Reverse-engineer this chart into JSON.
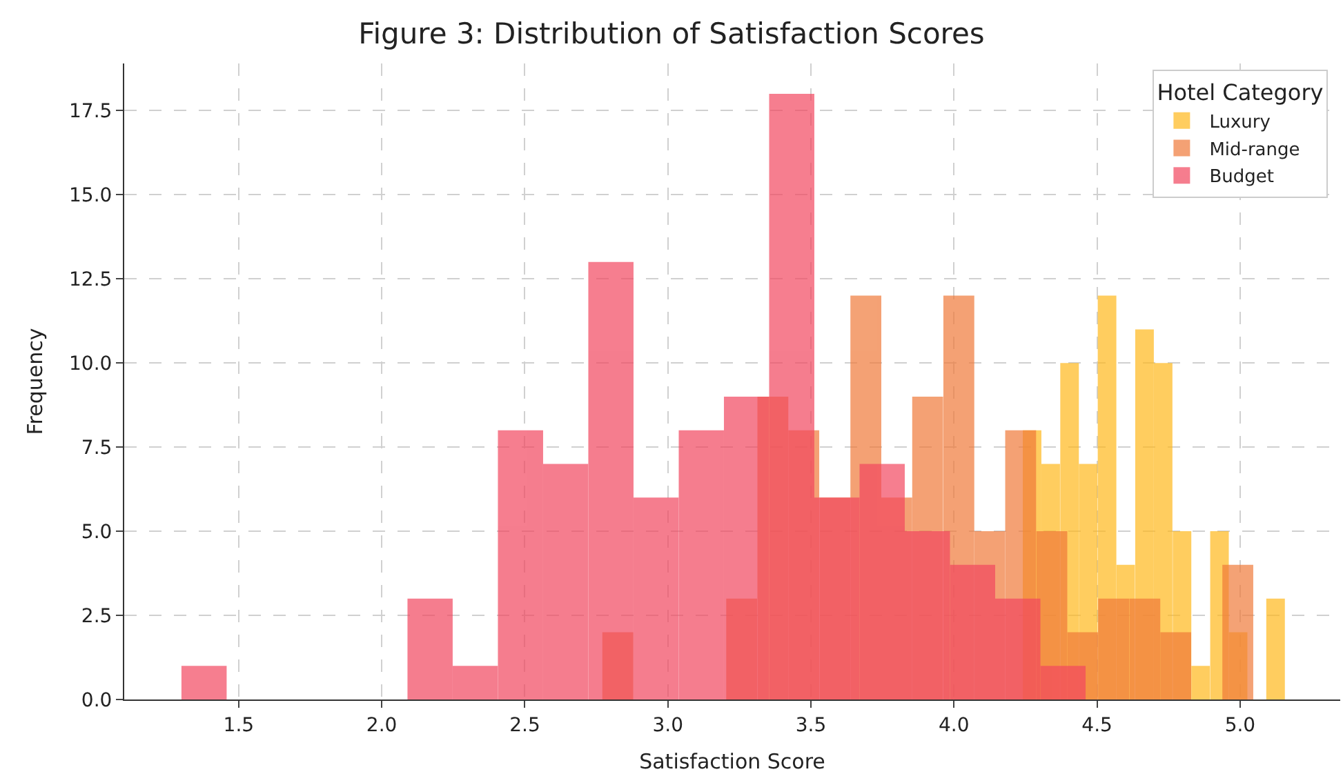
{
  "chart_data": {
    "type": "bar",
    "title": "Figure 3: Distribution of Satisfaction Scores",
    "xlabel": "Satisfaction Score",
    "ylabel": "Frequency",
    "legend_title": "Hotel Category",
    "legend": "top right",
    "grid": true,
    "xlim": [
      1.1,
      5.35
    ],
    "ylim": [
      0,
      18.9
    ],
    "xticks": [
      {
        "value": 1.5,
        "label": "1.5"
      },
      {
        "value": 2.0,
        "label": "2.0"
      },
      {
        "value": 2.5,
        "label": "2.5"
      },
      {
        "value": 3.0,
        "label": "3.0"
      },
      {
        "value": 3.5,
        "label": "3.5"
      },
      {
        "value": 4.0,
        "label": "4.0"
      },
      {
        "value": 4.5,
        "label": "4.5"
      },
      {
        "value": 5.0,
        "label": "5.0"
      }
    ],
    "yticks": [
      {
        "value": 0,
        "label": "0.0"
      },
      {
        "value": 2.5,
        "label": "2.5"
      },
      {
        "value": 5,
        "label": "5.0"
      },
      {
        "value": 7.5,
        "label": "7.5"
      },
      {
        "value": 10,
        "label": "10.0"
      },
      {
        "value": 12.5,
        "label": "12.5"
      },
      {
        "value": 15,
        "label": "15.0"
      },
      {
        "value": 17.5,
        "label": "17.5"
      }
    ],
    "series": [
      {
        "name": "Luxury",
        "color": "#ffb81c",
        "x": [
          4.273,
          4.338,
          4.404,
          4.469,
          4.535,
          4.6,
          4.666,
          4.731,
          4.797,
          4.862,
          4.928,
          4.993,
          5.124
        ],
        "values": [
          8,
          7,
          10,
          7,
          12,
          4,
          11,
          10,
          5,
          1,
          5,
          2,
          3
        ]
      },
      {
        "name": "Mid-range",
        "color": "#f07a3a",
        "x": [
          2.825,
          3.258,
          3.367,
          3.475,
          3.584,
          3.692,
          3.8,
          3.908,
          4.017,
          4.125,
          4.233,
          4.342,
          4.45,
          4.558,
          4.667,
          4.775,
          4.992
        ],
        "values": [
          2,
          3,
          9,
          8,
          6,
          12,
          6,
          9,
          12,
          5,
          8,
          5,
          2,
          3,
          3,
          2,
          4
        ]
      },
      {
        "name": "Budget",
        "color": "#f2475f",
        "x": [
          1.379,
          2.169,
          2.327,
          2.485,
          2.643,
          2.801,
          2.959,
          3.117,
          3.275,
          3.433,
          3.591,
          3.749,
          3.907,
          4.065,
          4.223,
          4.381
        ],
        "values": [
          1,
          3,
          1,
          8,
          7,
          13,
          6,
          8,
          9,
          18,
          6,
          7,
          5,
          4,
          3,
          1
        ]
      }
    ]
  }
}
